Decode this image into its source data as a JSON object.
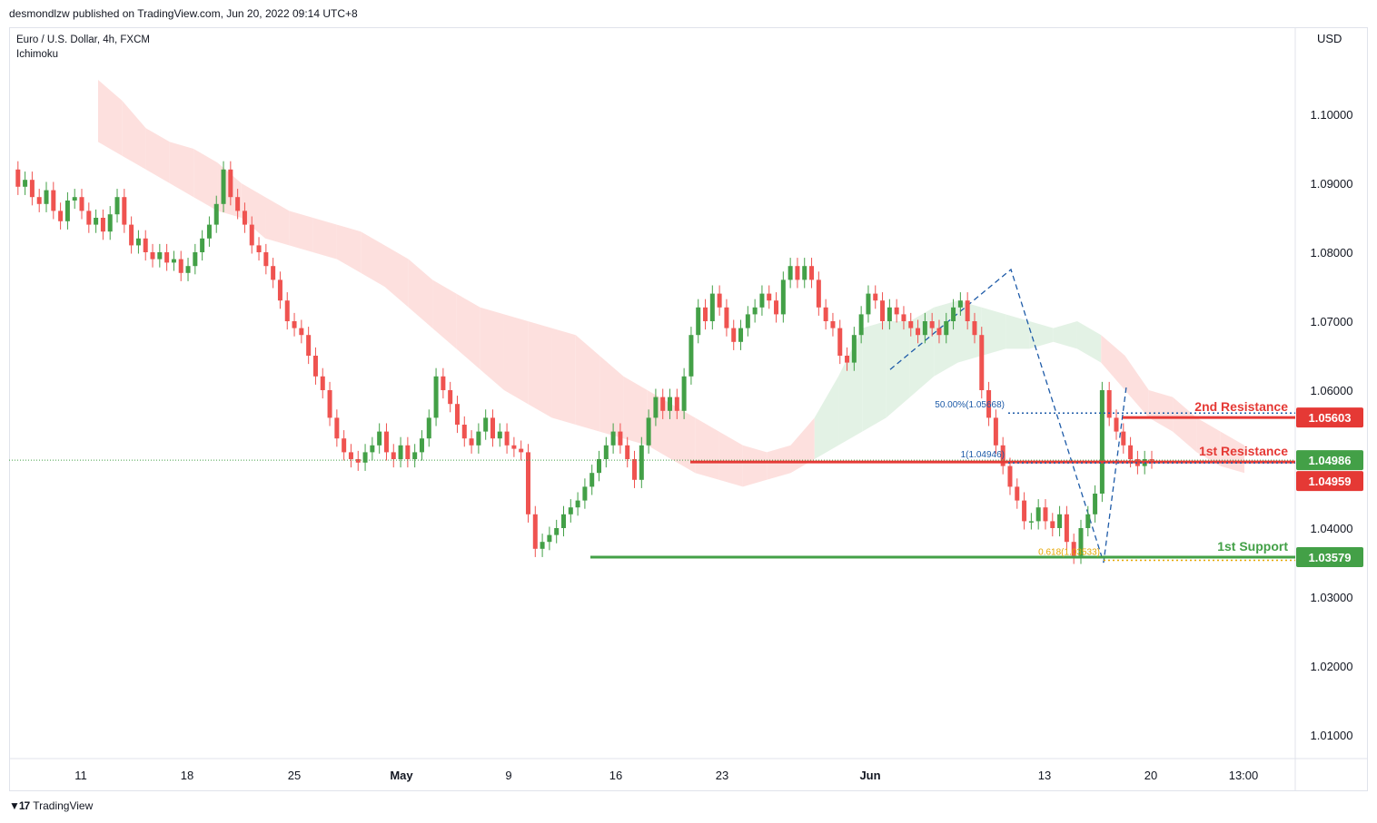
{
  "header": {
    "publisher": "desmondlzw published on TradingView.com, Jun 20, 2022 09:14 UTC+8",
    "symbol": "Euro / U.S. Dollar, 4h, FXCM",
    "indicator": "Ichimoku"
  },
  "footer": {
    "brand": "TradingView",
    "logo_icon": "tradingview-logo-icon"
  },
  "colors": {
    "up": "#43a047",
    "down": "#ef5350",
    "resistance": "#e53935",
    "support": "#43a047",
    "kumo_bear": "#fde0de",
    "kumo_bull": "#e3f2e5",
    "fib_blue": "#1e5ba8",
    "fib_orange": "#e6a700"
  },
  "chart_data": {
    "type": "candlestick",
    "y_axis_unit": "USD",
    "ylim": [
      1.0,
      1.112
    ],
    "y_ticks": [
      "1.10000",
      "1.09000",
      "1.08000",
      "1.07000",
      "1.06000",
      "1.04000",
      "1.03000",
      "1.02000",
      "1.01000"
    ],
    "x_ticks": [
      {
        "label": "11",
        "bold": false
      },
      {
        "label": "18",
        "bold": false
      },
      {
        "label": "25",
        "bold": false
      },
      {
        "label": "May",
        "bold": true
      },
      {
        "label": "9",
        "bold": false
      },
      {
        "label": "16",
        "bold": false
      },
      {
        "label": "23",
        "bold": false
      },
      {
        "label": "Jun",
        "bold": true
      },
      {
        "label": "13",
        "bold": false
      },
      {
        "label": "20",
        "bold": false
      },
      {
        "label": "13:00",
        "bold": false
      }
    ],
    "price_path": [
      1.092,
      1.0895,
      1.0905,
      1.088,
      1.087,
      1.089,
      1.086,
      1.0845,
      1.0875,
      1.088,
      1.086,
      1.084,
      1.085,
      1.083,
      1.0855,
      1.088,
      1.084,
      1.081,
      1.082,
      1.08,
      1.079,
      1.08,
      1.0785,
      1.079,
      1.077,
      1.078,
      1.08,
      1.082,
      1.084,
      1.087,
      1.092,
      1.088,
      1.086,
      1.084,
      1.081,
      1.08,
      1.078,
      1.076,
      1.073,
      1.07,
      1.069,
      1.068,
      1.065,
      1.062,
      1.06,
      1.056,
      1.053,
      1.051,
      1.05,
      1.0495,
      1.051,
      1.052,
      1.054,
      1.051,
      1.05,
      1.052,
      1.05,
      1.051,
      1.053,
      1.056,
      1.062,
      1.06,
      1.058,
      1.055,
      1.053,
      1.052,
      1.054,
      1.056,
      1.053,
      1.054,
      1.052,
      1.0515,
      1.051,
      1.042,
      1.037,
      1.038,
      1.039,
      1.04,
      1.042,
      1.043,
      1.044,
      1.046,
      1.048,
      1.05,
      1.052,
      1.054,
      1.052,
      1.05,
      1.047,
      1.052,
      1.056,
      1.059,
      1.057,
      1.059,
      1.057,
      1.062,
      1.068,
      1.072,
      1.07,
      1.074,
      1.072,
      1.069,
      1.067,
      1.069,
      1.071,
      1.072,
      1.074,
      1.073,
      1.071,
      1.076,
      1.078,
      1.076,
      1.078,
      1.076,
      1.072,
      1.07,
      1.069,
      1.065,
      1.064,
      1.068,
      1.071,
      1.074,
      1.073,
      1.07,
      1.072,
      1.071,
      1.07,
      1.069,
      1.068,
      1.07,
      1.069,
      1.068,
      1.07,
      1.072,
      1.073,
      1.07,
      1.068,
      1.06,
      1.056,
      1.052,
      1.049,
      1.046,
      1.044,
      1.041,
      1.041,
      1.043,
      1.041,
      1.04,
      1.042,
      1.038,
      1.036,
      1.04,
      1.042,
      1.045,
      1.06,
      1.056,
      1.054,
      1.052,
      1.05,
      1.049,
      1.05,
      1.0498
    ],
    "ichimoku_cloud": {
      "upper": [
        1.105,
        1.102,
        1.098,
        1.096,
        1.095,
        1.093,
        1.09,
        1.088,
        1.086,
        1.085,
        1.084,
        1.083,
        1.081,
        1.079,
        1.076,
        1.074,
        1.072,
        1.071,
        1.07,
        1.069,
        1.068,
        1.065,
        1.062,
        1.06,
        1.058,
        1.056,
        1.054,
        1.052,
        1.051,
        1.052,
        1.056,
        1.062,
        1.069,
        1.07,
        1.07,
        1.072,
        1.073,
        1.072,
        1.071,
        1.07,
        1.069,
        1.07,
        1.068,
        1.065,
        1.06,
        1.059,
        1.056,
        1.054,
        1.052
      ],
      "lower": [
        1.096,
        1.094,
        1.092,
        1.09,
        1.088,
        1.086,
        1.085,
        1.082,
        1.081,
        1.08,
        1.079,
        1.077,
        1.075,
        1.072,
        1.069,
        1.066,
        1.063,
        1.06,
        1.058,
        1.056,
        1.055,
        1.054,
        1.053,
        1.052,
        1.05,
        1.048,
        1.047,
        1.046,
        1.047,
        1.048,
        1.05,
        1.052,
        1.054,
        1.056,
        1.059,
        1.062,
        1.064,
        1.065,
        1.066,
        1.066,
        1.067,
        1.066,
        1.064,
        1.06,
        1.056,
        1.054,
        1.051,
        1.049,
        1.048
      ]
    },
    "levels": [
      {
        "name": "2nd Resistance",
        "price": 1.05603,
        "label": "1.05603",
        "color": "#e53935"
      },
      {
        "name": "1st Resistance",
        "price": 1.04959,
        "label": "1.04959",
        "color": "#e53935"
      },
      {
        "name": "1st Support",
        "price": 1.03579,
        "label": "1.03579",
        "color": "#43a047"
      }
    ],
    "current_price": {
      "price": 1.04986,
      "label": "1.04986"
    },
    "fib": [
      {
        "label": "50.00%(1.05668)",
        "price": 1.05668,
        "color": "#1e5ba8"
      },
      {
        "label": "1(1.04946)",
        "price": 1.04946,
        "color": "#1e5ba8"
      },
      {
        "label": "0.618(1.03533)",
        "price": 1.03533,
        "color": "#e6a700"
      }
    ],
    "pattern_points": [
      {
        "price": 1.063
      },
      {
        "price": 1.0775
      },
      {
        "price": 1.035
      },
      {
        "price": 1.0605
      }
    ]
  }
}
